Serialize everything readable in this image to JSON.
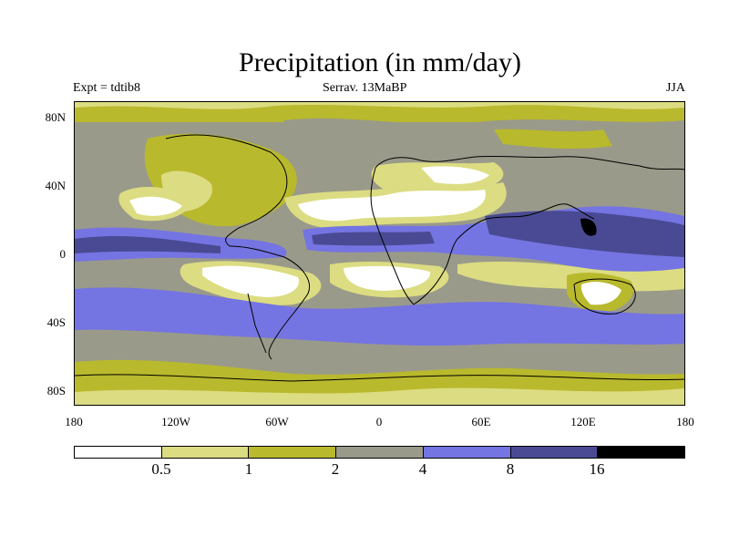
{
  "title": "Precipitation (in mm/day)",
  "experiment": "Expt = tdtib8",
  "subtitle": "Serrav.   13MaBP",
  "season": "JJA",
  "y_axis_labels": [
    "80N",
    "40N",
    "0",
    "40S",
    "80S"
  ],
  "x_axis_labels": [
    "180",
    "120W",
    "60W",
    "0",
    "60E",
    "120E",
    "180"
  ],
  "colorbar": {
    "colors": [
      "#ffffff",
      "#dcdc82",
      "#b9b92d",
      "#9a9a8a",
      "#7474e2",
      "#4a4a94",
      "#000000"
    ],
    "labels": [
      "0.5",
      "1",
      "2",
      "4",
      "8",
      "16"
    ]
  }
}
